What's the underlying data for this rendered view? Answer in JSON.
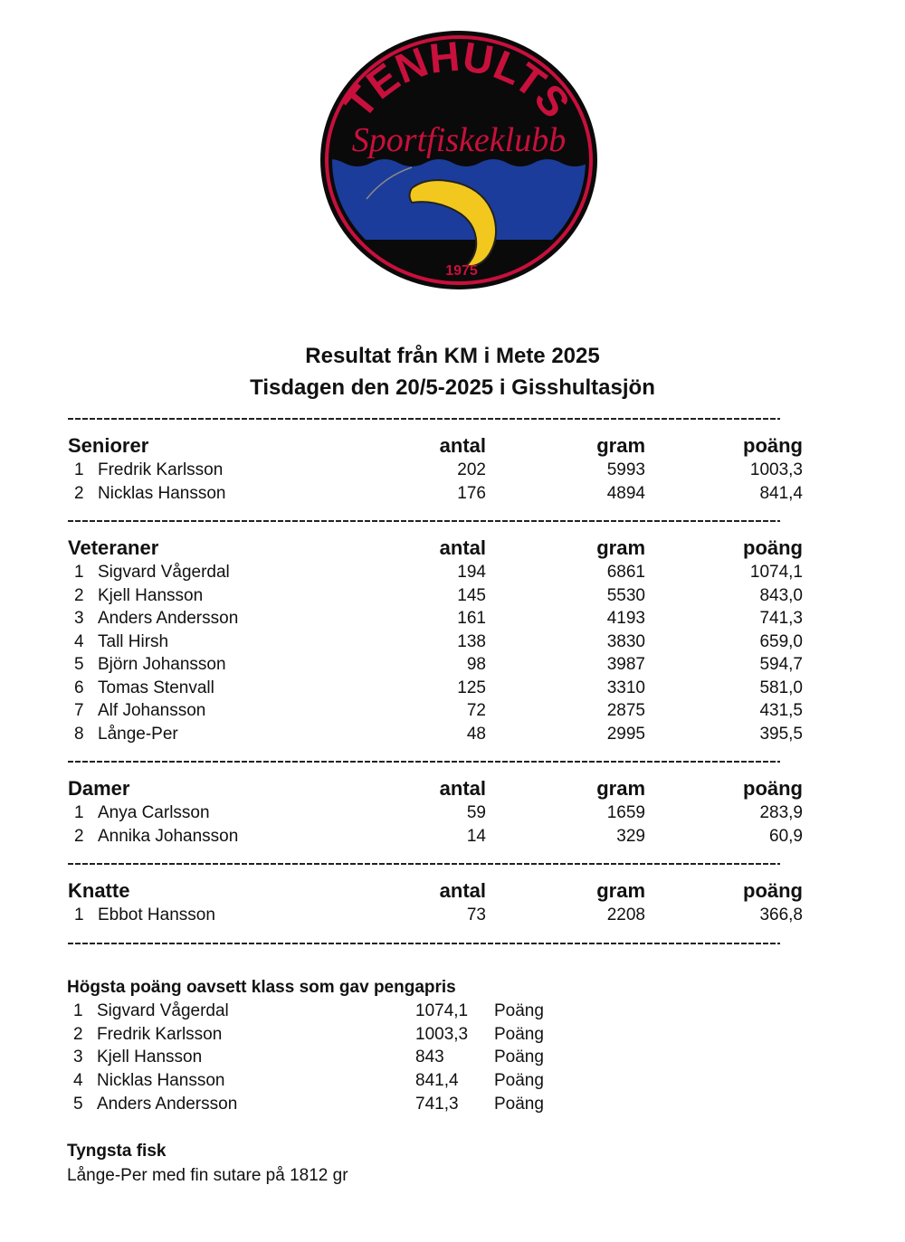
{
  "logo": {
    "top_text": "TENHULTS",
    "script_text": "Sportfiskeklubb",
    "year": "1975",
    "colors": {
      "ring": "#c8103c",
      "black": "#0a0a0a",
      "water": "#1b3c9a",
      "fish": "#f2c81e"
    }
  },
  "title": {
    "line1": "Resultat från KM i Mete 2025",
    "line2": "Tisdagen den 20/5-2025  i Gisshultasjön"
  },
  "columns": {
    "antal": "antal",
    "gram": "gram",
    "poang": "poäng"
  },
  "sections": [
    {
      "name": "Seniorer",
      "rows": [
        {
          "place": "1",
          "name": "Fredrik Karlsson",
          "antal": "202",
          "gram": "5993",
          "poang": "1003,3"
        },
        {
          "place": "2",
          "name": "Nicklas Hansson",
          "antal": "176",
          "gram": "4894",
          "poang": "841,4"
        }
      ]
    },
    {
      "name": "Veteraner",
      "rows": [
        {
          "place": "1",
          "name": "Sigvard Vågerdal",
          "antal": "194",
          "gram": "6861",
          "poang": "1074,1"
        },
        {
          "place": "2",
          "name": "Kjell Hansson",
          "antal": "145",
          "gram": "5530",
          "poang": "843,0"
        },
        {
          "place": "3",
          "name": "Anders Andersson",
          "antal": "161",
          "gram": "4193",
          "poang": "741,3"
        },
        {
          "place": "4",
          "name": "Tall Hirsh",
          "antal": "138",
          "gram": "3830",
          "poang": "659,0"
        },
        {
          "place": "5",
          "name": "Björn Johansson",
          "antal": "98",
          "gram": "3987",
          "poang": "594,7"
        },
        {
          "place": "6",
          "name": "Tomas Stenvall",
          "antal": "125",
          "gram": "3310",
          "poang": "581,0"
        },
        {
          "place": "7",
          "name": "Alf Johansson",
          "antal": "72",
          "gram": "2875",
          "poang": "431,5"
        },
        {
          "place": "8",
          "name": "Långe-Per",
          "antal": "48",
          "gram": "2995",
          "poang": "395,5"
        }
      ]
    },
    {
      "name": "Damer",
      "rows": [
        {
          "place": "1",
          "name": "Anya Carlsson",
          "antal": "59",
          "gram": "1659",
          "poang": "283,9"
        },
        {
          "place": "2",
          "name": "Annika Johansson",
          "antal": "14",
          "gram": "329",
          "poang": "60,9"
        }
      ]
    },
    {
      "name": "Knatte",
      "rows": [
        {
          "place": "1",
          "name": "Ebbot Hansson",
          "antal": "73",
          "gram": "2208",
          "poang": "366,8"
        }
      ]
    }
  ],
  "top_scores": {
    "heading": "Högsta poäng oavsett klass som gav pengapris",
    "rows": [
      {
        "place": "1",
        "name": "Sigvard Vågerdal",
        "value": "1074,1",
        "unit": "Poäng"
      },
      {
        "place": "2",
        "name": "Fredrik Karlsson",
        "value": "1003,3",
        "unit": "Poäng"
      },
      {
        "place": "3",
        "name": "Kjell Hansson",
        "value": "843",
        "unit": "Poäng"
      },
      {
        "place": "4",
        "name": "Nicklas Hansson",
        "value": "841,4",
        "unit": "Poäng"
      },
      {
        "place": "5",
        "name": "Anders Andersson",
        "value": "741,3",
        "unit": "Poäng"
      }
    ]
  },
  "heaviest": {
    "heading": "Tyngsta fisk",
    "text": "Långe-Per med fin sutare på 1812 gr"
  }
}
